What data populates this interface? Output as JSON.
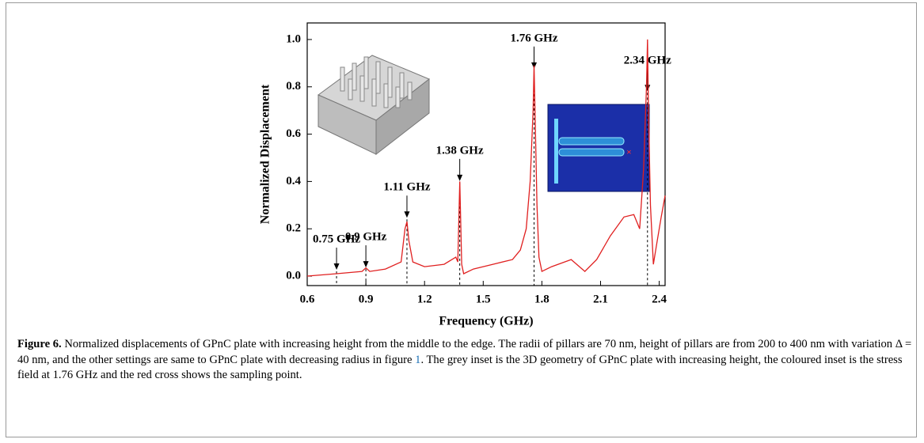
{
  "chart_data": {
    "type": "line",
    "xlabel": "Frequency (GHz)",
    "ylabel": "Normalized Displacement",
    "xlim": [
      0.6,
      2.43
    ],
    "ylim": [
      -0.04,
      1.07
    ],
    "xticks": [
      0.6,
      0.9,
      1.2,
      1.5,
      1.8,
      2.1,
      2.4
    ],
    "yticks": [
      {
        "value": 0,
        "label": "0.0"
      },
      0.2,
      0.4,
      0.6,
      0.8,
      {
        "value": 1,
        "label": "1.0"
      }
    ],
    "color": "#e02020",
    "x": [
      0.6,
      0.75,
      0.88,
      0.9,
      0.92,
      1.0,
      1.08,
      1.1,
      1.11,
      1.12,
      1.14,
      1.2,
      1.3,
      1.36,
      1.37,
      1.38,
      1.39,
      1.4,
      1.45,
      1.55,
      1.65,
      1.69,
      1.72,
      1.74,
      1.755,
      1.76,
      1.765,
      1.775,
      1.785,
      1.8,
      1.85,
      1.95,
      2.02,
      2.08,
      2.15,
      2.22,
      2.27,
      2.3,
      2.32,
      2.335,
      2.34,
      2.345,
      2.355,
      2.37,
      2.39,
      2.41,
      2.43
    ],
    "values": [
      0.0,
      0.01,
      0.02,
      0.035,
      0.02,
      0.03,
      0.06,
      0.2,
      0.23,
      0.15,
      0.06,
      0.04,
      0.05,
      0.08,
      0.06,
      0.4,
      0.05,
      0.01,
      0.03,
      0.05,
      0.07,
      0.11,
      0.2,
      0.4,
      0.7,
      0.89,
      0.7,
      0.3,
      0.08,
      0.02,
      0.04,
      0.07,
      0.02,
      0.07,
      0.17,
      0.25,
      0.26,
      0.2,
      0.45,
      0.8,
      1.0,
      0.7,
      0.3,
      0.05,
      0.15,
      0.25,
      0.34
    ],
    "annotations": [
      {
        "x": 0.75,
        "y": 0.02,
        "label": "0.75 GHz"
      },
      {
        "x": 0.9,
        "y": 0.03,
        "label": "0.9 GHz"
      },
      {
        "x": 1.11,
        "y": 0.24,
        "label": "1.11 GHz"
      },
      {
        "x": 1.38,
        "y": 0.395,
        "label": "1.38 GHz"
      },
      {
        "x": 1.76,
        "y": 0.87,
        "label": "1.76 GHz"
      },
      {
        "x": 2.34,
        "y": 0.775,
        "label": "2.34 GHz"
      }
    ]
  },
  "caption": {
    "label": "Figure 6.",
    "text1": "Normalized displacements of GPnC plate with increasing height from the middle to the edge. The radii of pillars are 70 nm, height of pillars are from 200 to 400 nm with variation Δ = 40 nm, and the other settings are same to GPnC plate with decreasing radius in figure ",
    "ref": "1",
    "text2": ". The grey inset is the 3D geometry of GPnC plate with increasing height, the coloured inset is the stress field at 1.76 GHz and the red cross shows the sampling point."
  }
}
